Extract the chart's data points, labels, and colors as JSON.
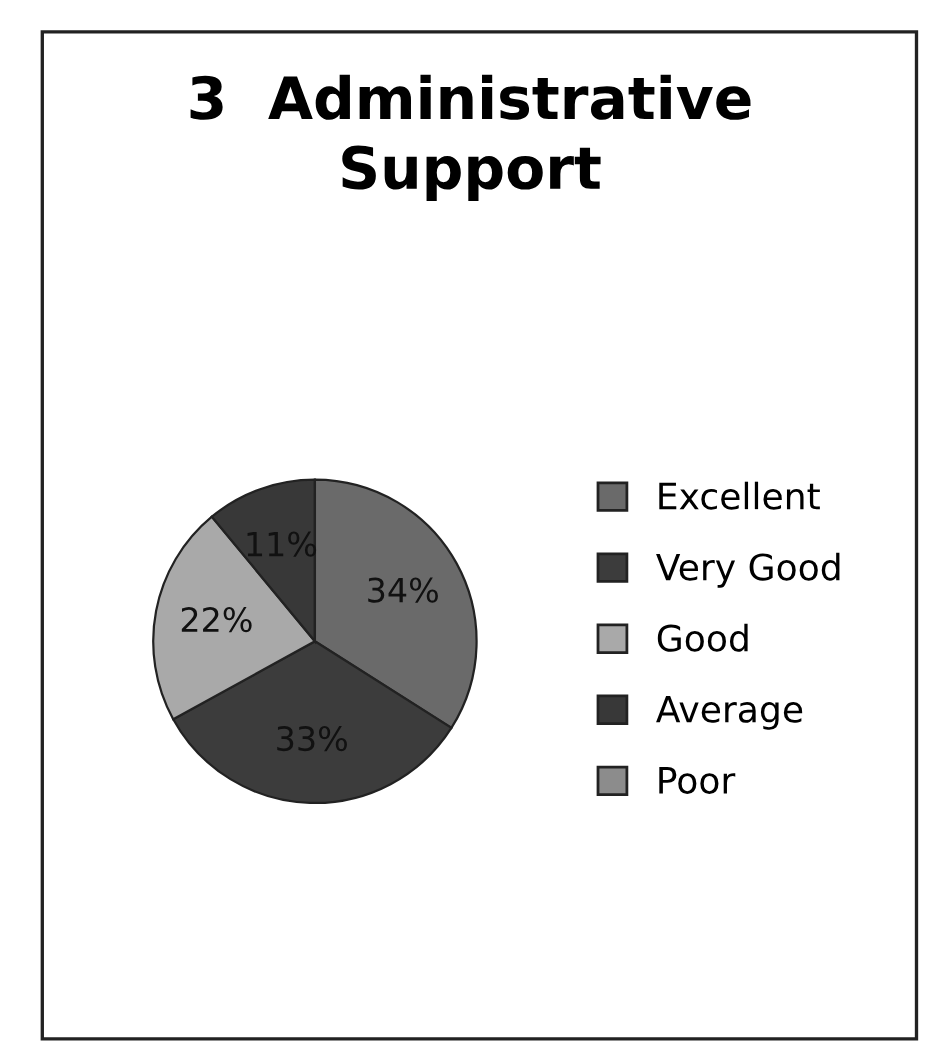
{
  "chart_data": {
    "type": "pie",
    "title": "3  Administrative\nSupport",
    "categories": [
      "Excellent",
      "Very Good",
      "Good",
      "Average",
      "Poor"
    ],
    "values": [
      34,
      33,
      22,
      11,
      0
    ],
    "colors": [
      "#6a6a6a",
      "#3c3c3c",
      "#a9a9a9",
      "#383838",
      "#8c8c8c"
    ],
    "value_labels": [
      "34%",
      "33%",
      "22%",
      "11%",
      null
    ],
    "legend": "right"
  }
}
